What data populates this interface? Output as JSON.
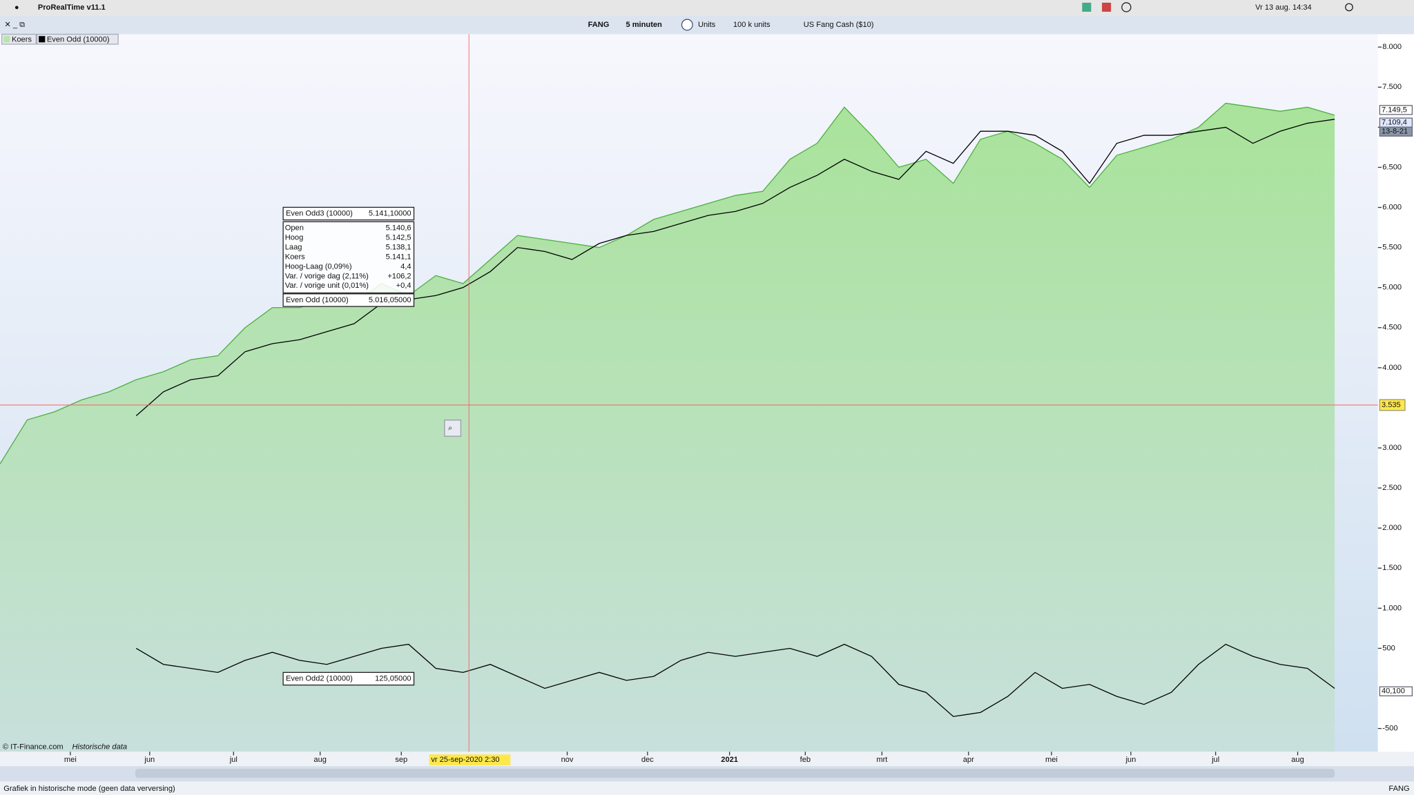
{
  "menubar": {
    "app": "ProRealTime v11.1",
    "clock": "Vr 13 aug.  14:34"
  },
  "toolbar": {
    "ticker": "FANG",
    "interval": "5 minuten",
    "mode": "Units",
    "size": "100 k units",
    "instrument": "US Fang Cash ($10)"
  },
  "chart_data": {
    "type": "line",
    "series": [
      {
        "name": "Koers",
        "color": "#4caf3f",
        "fill": "#b6e6a8",
        "values": [
          2800,
          3350,
          3450,
          3600,
          3700,
          3850,
          3950,
          4100,
          4150,
          4500,
          4750,
          4750,
          4850,
          4800,
          5050,
          4900,
          5150,
          5050,
          5350,
          5650,
          5600,
          5550,
          5500,
          5650,
          5850,
          5950,
          6050,
          6150,
          6200,
          6600,
          6800,
          7250,
          6900,
          6500,
          6600,
          6300,
          6850,
          6950,
          6800,
          6600,
          6250,
          6650,
          6750,
          6850,
          7000,
          7300,
          7250,
          7200,
          7250,
          7150
        ]
      },
      {
        "name": "Even Odd (10000)",
        "color": "#000000",
        "values": [
          null,
          null,
          null,
          null,
          null,
          3400,
          3700,
          3850,
          3900,
          4200,
          4300,
          4350,
          4450,
          4550,
          4800,
          4850,
          4900,
          5000,
          5200,
          5500,
          5450,
          5350,
          5550,
          5650,
          5700,
          5800,
          5900,
          5950,
          6050,
          6250,
          6400,
          6600,
          6450,
          6350,
          6700,
          6550,
          6950,
          6950,
          6900,
          6700,
          6300,
          6800,
          6900,
          6900,
          6950,
          7000,
          6800,
          6950,
          7050,
          7100
        ]
      },
      {
        "name": "Even Odd2 (10000)",
        "color": "#000000",
        "values": [
          null,
          null,
          null,
          null,
          null,
          500,
          300,
          250,
          200,
          350,
          450,
          350,
          300,
          400,
          500,
          550,
          250,
          200,
          300,
          150,
          0,
          100,
          200,
          100,
          150,
          350,
          450,
          400,
          450,
          500,
          400,
          550,
          400,
          50,
          -50,
          -350,
          -300,
          -100,
          200,
          0,
          50,
          -100,
          -200,
          -50,
          300,
          550,
          400,
          300,
          250,
          0
        ]
      }
    ],
    "ylim": [
      -790,
      8160
    ],
    "yticks": [
      {
        "value": 8000,
        "label": "8.000"
      },
      {
        "value": 7500,
        "label": "7.500"
      },
      {
        "value": 7000,
        "label": "7.000"
      },
      {
        "value": 6500,
        "label": "6.500"
      },
      {
        "value": 6000,
        "label": "6.000"
      },
      {
        "value": 5500,
        "label": "5.500"
      },
      {
        "value": 5000,
        "label": "5.000"
      },
      {
        "value": 4500,
        "label": "4.500"
      },
      {
        "value": 4000,
        "label": "4.000"
      },
      {
        "value": 3000,
        "label": "3.000"
      },
      {
        "value": 2500,
        "label": "2.500"
      },
      {
        "value": 2000,
        "label": "2.000"
      },
      {
        "value": 1500,
        "label": "1.500"
      },
      {
        "value": 1000,
        "label": "1.000"
      },
      500,
      -500
    ],
    "x_labels": [
      "mei",
      "jun",
      "jul",
      "aug",
      "sep",
      "nov",
      "dec",
      "2021",
      "feb",
      "mrt",
      "apr",
      "mei",
      "jun",
      "jul",
      "aug"
    ],
    "crosshair": {
      "value": 3535,
      "label": "3.535",
      "date": "vr 25-sep-2020 2:30"
    },
    "price_labels": {
      "last": "7.149,5",
      "even_odd": "7.109,4",
      "date": "13-8-21",
      "even_odd2": "40,100"
    }
  },
  "tooltip": {
    "title": "Even Odd3 (10000)",
    "title_value": "5.141,10000",
    "rows": [
      [
        "Open",
        "5.140,6"
      ],
      [
        "Hoog",
        "5.142,5"
      ],
      [
        "Laag",
        "5.138,1"
      ],
      [
        "Koers",
        "5.141,1"
      ],
      [
        "Hoog-Laag (0,09%)",
        "4,4"
      ],
      [
        "Var. / vorige dag (2,11%)",
        "+106,2"
      ],
      [
        "Var. / vorige unit (0,01%)",
        "+0,4"
      ]
    ],
    "even_odd_value": "5.016,05000",
    "even_odd2_value": "125,05000"
  },
  "footer": {
    "copyright": "© IT-Finance.com",
    "mode": "Historische data",
    "status": "Grafiek in historische mode (geen data verversing)",
    "symbol": "FANG"
  }
}
